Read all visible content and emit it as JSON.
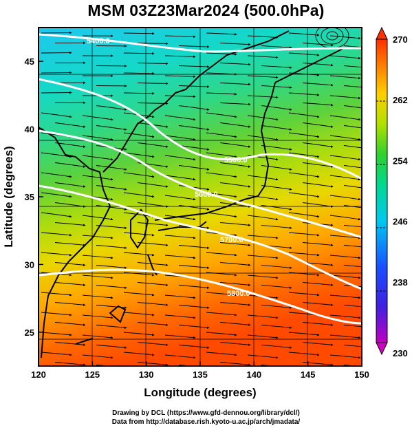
{
  "title": "MSM 03Z23Mar2024 (500.0hPa)",
  "credits": [
    "Drawing by DCL (https://www.gfd-dennou.org/library/dcl/)",
    "Data from http://database.rish.kyoto-u.ac.jp/arch/jmadata/"
  ],
  "axes": {
    "xlabel": "Longitude (degrees)",
    "ylabel": "Latitude  (degrees)",
    "xticks": [
      "120",
      "125",
      "130",
      "135",
      "140",
      "145",
      "150"
    ],
    "yticks": [
      "25",
      "30",
      "35",
      "40",
      "45"
    ],
    "xrange": [
      120,
      150
    ],
    "yrange": [
      22.5,
      47.5
    ]
  },
  "colorbar": {
    "ticks": [
      "270",
      "262",
      "254",
      "246",
      "238",
      "230"
    ],
    "range": [
      230,
      270
    ],
    "colors": [
      "#c000c0",
      "#2020ff",
      "#00c0ff",
      "#00e0a0",
      "#40d040",
      "#c0e000",
      "#ffd000",
      "#ff8000",
      "#ff3000"
    ]
  },
  "contours": [
    {
      "label": "5400.0"
    },
    {
      "label": "5500.0"
    },
    {
      "label": "5600.0"
    },
    {
      "label": "5700.0"
    },
    {
      "label": "5800.0"
    }
  ]
}
